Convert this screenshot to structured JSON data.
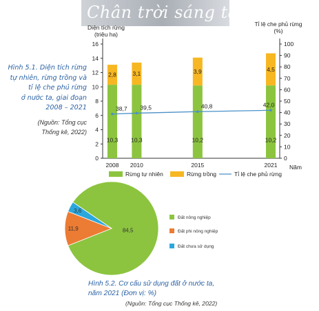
{
  "banner": {
    "text": "Chân trời sáng tạo"
  },
  "figure1": {
    "caption": [
      "Hình 5.1. Diện tích rừng",
      "tự nhiên, rừng trồng và",
      "tỉ lệ che phủ rừng",
      "ở nước ta, giai đoạn",
      "2008 – 2021"
    ],
    "source": [
      "(Nguồn: Tổng cục",
      "Thống kê, 2022)"
    ]
  },
  "figure2": {
    "caption": [
      "Hình 5.2. Cơ cấu sử dụng đất ở nước ta,",
      "năm 2021 (Đơn vị: %)"
    ],
    "source": "(Nguồn: Tổng cục Thống kê, 2022)"
  },
  "chart_data": [
    {
      "type": "bar",
      "stacked": true,
      "categories": [
        "2008",
        "2010",
        "2015",
        "2021"
      ],
      "series": [
        {
          "name": "Rừng tự nhiên",
          "values": [
            10.3,
            10.3,
            10.2,
            10.2
          ],
          "labels": [
            "10,3",
            "10,3",
            "10,2",
            "10,2"
          ],
          "color": "#8cc43f"
        },
        {
          "name": "Rừng trồng",
          "values": [
            2.8,
            3.1,
            3.9,
            4.5
          ],
          "labels": [
            "2,8",
            "3,1",
            "3,9",
            "4,5"
          ],
          "color": "#f7b722"
        }
      ],
      "line_series": {
        "name": "Tỉ lệ che phủ rừng",
        "values": [
          38.7,
          39.5,
          40.8,
          42.0
        ],
        "labels": [
          "38,7",
          "39,5",
          "40,8",
          "42,0"
        ],
        "color": "#4a90c8",
        "axis": "right"
      },
      "ylabel": [
        "Diện tích rừng",
        "(triệu ha)"
      ],
      "y2label": [
        "Tỉ lệ che phủ rừng",
        "(%)"
      ],
      "xlabel": "Năm",
      "ylim": [
        0,
        16
      ],
      "yticks": [
        "0",
        "2",
        "4",
        "6",
        "8",
        "10",
        "12",
        "14",
        "16"
      ],
      "y2lim": [
        0,
        100
      ],
      "y2ticks": [
        "0",
        "10",
        "20",
        "30",
        "40",
        "50",
        "60",
        "70",
        "80",
        "90",
        "100"
      ],
      "legend_position": "bottom"
    },
    {
      "type": "pie",
      "slices": [
        {
          "name": "Đất nông nghiệp",
          "value": 84.5,
          "label": "84,5",
          "color": "#8cc43f"
        },
        {
          "name": "Đất phi nông nghiệp",
          "value": 11.9,
          "label": "11,9",
          "color": "#ec7b33"
        },
        {
          "name": "Đất chưa sử dụng",
          "value": 3.6,
          "label": "3,6",
          "color": "#2ba7dc"
        }
      ],
      "legend_position": "right"
    }
  ]
}
